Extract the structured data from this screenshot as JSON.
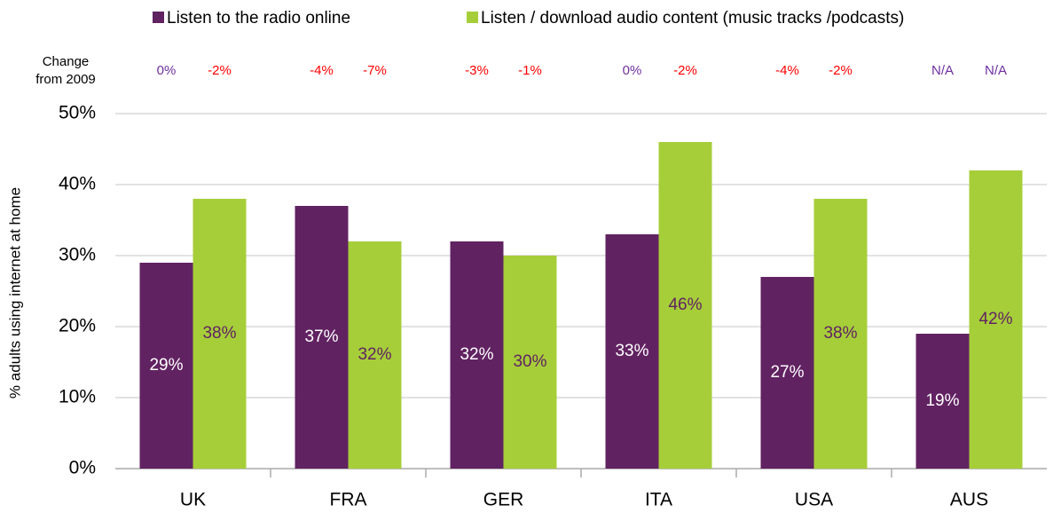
{
  "chart_data": {
    "type": "bar",
    "y_label": "% adults using internet at home",
    "annotation_title": [
      "Change",
      "from 2009"
    ],
    "categories": [
      "UK",
      "FRA",
      "GER",
      "ITA",
      "USA",
      "AUS"
    ],
    "series": [
      {
        "name": "Listen to the radio online",
        "color": "#612262",
        "label_color": "#ffffff",
        "values": [
          29,
          37,
          32,
          33,
          27,
          19
        ],
        "value_labels": [
          "29%",
          "37%",
          "32%",
          "33%",
          "27%",
          "19%"
        ],
        "changes": [
          {
            "label": "0%",
            "color": "#7030a0"
          },
          {
            "label": "-4%",
            "color": "#ff0000"
          },
          {
            "label": "-3%",
            "color": "#ff0000"
          },
          {
            "label": "0%",
            "color": "#7030a0"
          },
          {
            "label": "-4%",
            "color": "#ff0000"
          },
          {
            "label": "N/A",
            "color": "#7030a0"
          }
        ]
      },
      {
        "name": "Listen / download  audio content (music tracks /podcasts)",
        "color": "#a6ce39",
        "label_color": "#612262",
        "values": [
          38,
          32,
          30,
          46,
          38,
          42
        ],
        "value_labels": [
          "38%",
          "32%",
          "30%",
          "46%",
          "38%",
          "42%"
        ],
        "changes": [
          {
            "label": "-2%",
            "color": "#ff0000"
          },
          {
            "label": "-7%",
            "color": "#ff0000"
          },
          {
            "label": "-1%",
            "color": "#ff0000"
          },
          {
            "label": "-2%",
            "color": "#ff0000"
          },
          {
            "label": "-2%",
            "color": "#ff0000"
          },
          {
            "label": "N/A",
            "color": "#7030a0"
          }
        ]
      }
    ],
    "ylim": [
      0,
      50
    ],
    "yticks": [
      {
        "value": 0,
        "label": "0%"
      },
      {
        "value": 10,
        "label": "10%"
      },
      {
        "value": 20,
        "label": "20%"
      },
      {
        "value": 30,
        "label": "30%"
      },
      {
        "value": 40,
        "label": "40%"
      },
      {
        "value": 50,
        "label": "50%"
      }
    ],
    "grid": true
  }
}
